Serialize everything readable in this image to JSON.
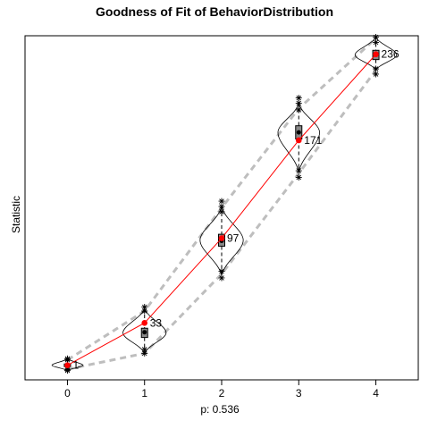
{
  "chart_data": {
    "type": "line",
    "title": "Goodness of Fit of BehaviorDistribution",
    "xlabel": "p: 0.536",
    "ylabel": "Statistic",
    "x_ticks": [
      "0",
      "1",
      "2",
      "3",
      "4"
    ],
    "xlim": [
      -0.55,
      4.55
    ],
    "ylim": [
      -10,
      250
    ],
    "y_ticks_shown": false,
    "grid": false,
    "observed": {
      "x": [
        0,
        1,
        2,
        3,
        4
      ],
      "values": [
        1,
        33,
        97,
        171,
        236
      ],
      "labels": [
        "1",
        "33",
        "97",
        "171",
        "236"
      ],
      "color": "#ff0000"
    },
    "simulated_median": [
      1,
      26,
      95,
      177,
      236
    ],
    "box": {
      "q1": [
        0,
        22,
        91,
        172,
        232
      ],
      "q3": [
        2,
        29,
        100,
        182,
        239
      ]
    },
    "envelope": {
      "lower": [
        -2,
        10,
        70,
        146,
        224
      ],
      "upper": [
        5,
        42,
        120,
        195,
        248
      ]
    },
    "violin": {
      "min": [
        -3,
        10,
        69,
        147,
        224
      ],
      "max": [
        6,
        44,
        121,
        199,
        249
      ],
      "half_width": [
        0.2,
        0.28,
        0.28,
        0.27,
        0.27
      ]
    },
    "outliers": {
      "lower": [
        [
          -2,
          -3
        ],
        [
          10,
          13
        ],
        [
          67,
          72
        ],
        [
          143,
          148
        ],
        [
          221,
          225
        ]
      ],
      "upper": [
        [
          5,
          6
        ],
        [
          42,
          45
        ],
        [
          117,
          121,
          125
        ],
        [
          194,
          199,
          203
        ],
        [
          245,
          249
        ]
      ]
    },
    "colors": {
      "envelope": "#bebebe",
      "line": "#ff0000",
      "violin": "#000000"
    }
  }
}
